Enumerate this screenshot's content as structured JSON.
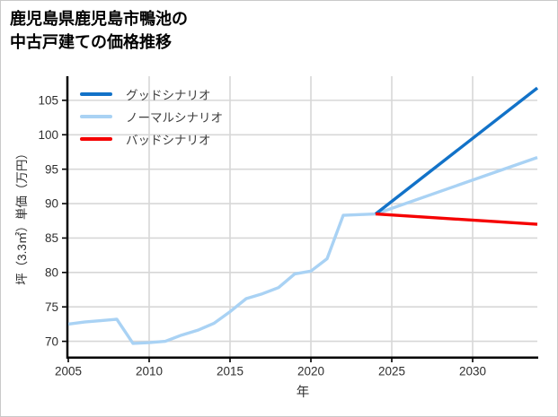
{
  "title": {
    "line1": "鹿児島県鹿児島市鴨池の",
    "line2": "中古戸建ての価格推移"
  },
  "colors": {
    "grid": "#d7d7d7",
    "spine": "#000000",
    "tick_label": "#2e2e2e",
    "legend_text": "#3d3d3d",
    "good_scenario": "#1272c8",
    "normal_scenario": "#a9d2f4",
    "bad_scenario": "#f50000"
  },
  "chart_data": {
    "type": "line",
    "title": "鹿児島県鹿児島市鴨池の中古戸建ての価格推移",
    "xlabel": "年",
    "ylabel": "坪（3.3㎡）単価（万円）",
    "xlim": [
      2005,
      2034
    ],
    "ylim": [
      67.8,
      108.5
    ],
    "xticks": [
      2005,
      2010,
      2015,
      2020,
      2025,
      2030
    ],
    "yticks": [
      70,
      75,
      80,
      85,
      90,
      95,
      100,
      105
    ],
    "grid": true,
    "legend_position": "top-left",
    "series": [
      {
        "name": "グッドシナリオ",
        "color": "#1272c8",
        "x": [
          2024,
          2034
        ],
        "values": [
          88.5,
          106.8
        ]
      },
      {
        "name": "ノーマルシナリオ",
        "color": "#a9d2f4",
        "x": [
          2005,
          2006,
          2007,
          2008,
          2009,
          2010,
          2011,
          2012,
          2013,
          2014,
          2015,
          2016,
          2017,
          2018,
          2019,
          2020,
          2021,
          2022,
          2023,
          2024,
          2034
        ],
        "values": [
          72.5,
          72.8,
          73.0,
          73.2,
          69.7,
          69.8,
          70.0,
          70.9,
          71.6,
          72.6,
          74.3,
          76.2,
          76.9,
          77.8,
          79.8,
          80.2,
          82.0,
          88.3,
          88.4,
          88.5,
          96.7
        ]
      },
      {
        "name": "バッドシナリオ",
        "color": "#f50000",
        "x": [
          2024,
          2034
        ],
        "values": [
          88.5,
          87.0
        ]
      }
    ]
  }
}
